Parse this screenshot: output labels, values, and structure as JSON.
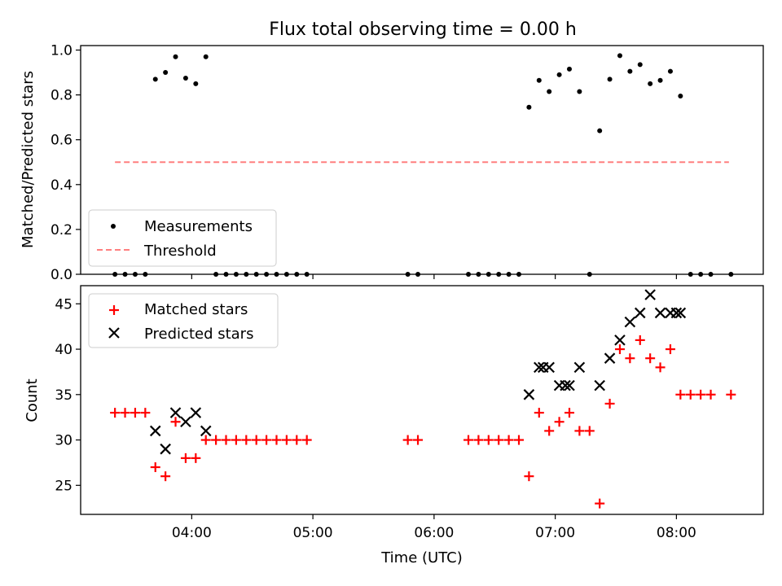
{
  "chart_data": [
    {
      "type": "scatter",
      "title": "Flux total observing time = 0.00 h",
      "xlabel": "",
      "ylabel": "Matched/Predicted stars",
      "ylim": [
        0,
        1.02
      ],
      "yticks": [
        0.0,
        0.2,
        0.4,
        0.6,
        0.8,
        1.0
      ],
      "ytick_labels": [
        "0.0",
        "0.2",
        "0.4",
        "0.6",
        "0.8",
        "1.0"
      ],
      "legend_position": "lower-left",
      "series": [
        {
          "name": "Measurements",
          "marker": "dot",
          "color": "#000000",
          "points": [
            [
              "03:22",
              0.0
            ],
            [
              "03:27",
              0.0
            ],
            [
              "03:32",
              0.0
            ],
            [
              "03:37",
              0.0
            ],
            [
              "03:42",
              0.87
            ],
            [
              "03:47",
              0.9
            ],
            [
              "03:52",
              0.97
            ],
            [
              "03:57",
              0.875
            ],
            [
              "04:02",
              0.85
            ],
            [
              "04:07",
              0.97
            ],
            [
              "04:12",
              0.0
            ],
            [
              "04:17",
              0.0
            ],
            [
              "04:22",
              0.0
            ],
            [
              "04:27",
              0.0
            ],
            [
              "04:32",
              0.0
            ],
            [
              "04:37",
              0.0
            ],
            [
              "04:42",
              0.0
            ],
            [
              "04:47",
              0.0
            ],
            [
              "04:52",
              0.0
            ],
            [
              "04:57",
              0.0
            ],
            [
              "05:47",
              0.0
            ],
            [
              "05:52",
              0.0
            ],
            [
              "06:17",
              0.0
            ],
            [
              "06:22",
              0.0
            ],
            [
              "06:27",
              0.0
            ],
            [
              "06:32",
              0.0
            ],
            [
              "06:37",
              0.0
            ],
            [
              "06:42",
              0.0
            ],
            [
              "06:47",
              0.745
            ],
            [
              "06:52",
              0.865
            ],
            [
              "06:57",
              0.815
            ],
            [
              "07:02",
              0.89
            ],
            [
              "07:07",
              0.915
            ],
            [
              "07:12",
              0.815
            ],
            [
              "07:17",
              0.0
            ],
            [
              "07:22",
              0.64
            ],
            [
              "07:27",
              0.87
            ],
            [
              "07:32",
              0.975
            ],
            [
              "07:37",
              0.905
            ],
            [
              "07:42",
              0.935
            ],
            [
              "07:47",
              0.85
            ],
            [
              "07:52",
              0.865
            ],
            [
              "07:57",
              0.905
            ],
            [
              "08:02",
              0.795
            ],
            [
              "08:07",
              0.0
            ],
            [
              "08:12",
              0.0
            ],
            [
              "08:17",
              0.0
            ],
            [
              "08:27",
              0.0
            ]
          ]
        },
        {
          "name": "Threshold",
          "style": "dashed",
          "color": "#ff7f7f",
          "x_range": [
            "03:22",
            "08:26"
          ],
          "value": 0.5
        }
      ]
    },
    {
      "type": "scatter",
      "title": "",
      "xlabel": "Time (UTC)",
      "ylabel": "Count",
      "ylim": [
        21.8,
        47.0
      ],
      "yticks": [
        25,
        30,
        35,
        40,
        45
      ],
      "ytick_labels": [
        "25",
        "30",
        "35",
        "40",
        "45"
      ],
      "xticks": [
        "04:00",
        "05:00",
        "06:00",
        "07:00",
        "08:00"
      ],
      "xtick_labels": [
        "04:00",
        "05:00",
        "06:00",
        "07:00",
        "08:00"
      ],
      "legend_position": "upper-left",
      "series": [
        {
          "name": "Matched stars",
          "marker": "plus",
          "color": "#ff0000",
          "points": [
            [
              "03:22",
              33
            ],
            [
              "03:27",
              33
            ],
            [
              "03:32",
              33
            ],
            [
              "03:37",
              33
            ],
            [
              "03:42",
              27
            ],
            [
              "03:47",
              26
            ],
            [
              "03:52",
              32
            ],
            [
              "03:57",
              28
            ],
            [
              "04:02",
              28
            ],
            [
              "04:07",
              30
            ],
            [
              "04:12",
              30
            ],
            [
              "04:17",
              30
            ],
            [
              "04:22",
              30
            ],
            [
              "04:27",
              30
            ],
            [
              "04:32",
              30
            ],
            [
              "04:37",
              30
            ],
            [
              "04:42",
              30
            ],
            [
              "04:47",
              30
            ],
            [
              "04:52",
              30
            ],
            [
              "04:57",
              30
            ],
            [
              "05:47",
              30
            ],
            [
              "05:52",
              30
            ],
            [
              "06:17",
              30
            ],
            [
              "06:22",
              30
            ],
            [
              "06:27",
              30
            ],
            [
              "06:32",
              30
            ],
            [
              "06:37",
              30
            ],
            [
              "06:42",
              30
            ],
            [
              "06:47",
              26
            ],
            [
              "06:52",
              33
            ],
            [
              "06:57",
              31
            ],
            [
              "07:02",
              32
            ],
            [
              "07:07",
              33
            ],
            [
              "07:12",
              31
            ],
            [
              "07:17",
              31
            ],
            [
              "07:22",
              23
            ],
            [
              "07:27",
              34
            ],
            [
              "07:32",
              40
            ],
            [
              "07:37",
              39
            ],
            [
              "07:42",
              41
            ],
            [
              "07:47",
              39
            ],
            [
              "07:52",
              38
            ],
            [
              "07:57",
              40
            ],
            [
              "08:02",
              35
            ],
            [
              "08:07",
              35
            ],
            [
              "08:12",
              35
            ],
            [
              "08:17",
              35
            ],
            [
              "08:27",
              35
            ]
          ]
        },
        {
          "name": "Predicted stars",
          "marker": "x",
          "color": "#000000",
          "points": [
            [
              "03:42",
              31
            ],
            [
              "03:47",
              29
            ],
            [
              "03:52",
              33
            ],
            [
              "03:57",
              32
            ],
            [
              "04:02",
              33
            ],
            [
              "04:07",
              31
            ],
            [
              "06:47",
              35
            ],
            [
              "06:52",
              38
            ],
            [
              "06:54",
              38
            ],
            [
              "06:57",
              38
            ],
            [
              "07:02",
              36
            ],
            [
              "07:05",
              36
            ],
            [
              "07:07",
              36
            ],
            [
              "07:12",
              38
            ],
            [
              "07:22",
              36
            ],
            [
              "07:27",
              39
            ],
            [
              "07:32",
              41
            ],
            [
              "07:37",
              43
            ],
            [
              "07:42",
              44
            ],
            [
              "07:47",
              46
            ],
            [
              "07:52",
              44
            ],
            [
              "07:57",
              44
            ],
            [
              "08:00",
              44
            ],
            [
              "08:02",
              44
            ]
          ]
        }
      ]
    }
  ]
}
